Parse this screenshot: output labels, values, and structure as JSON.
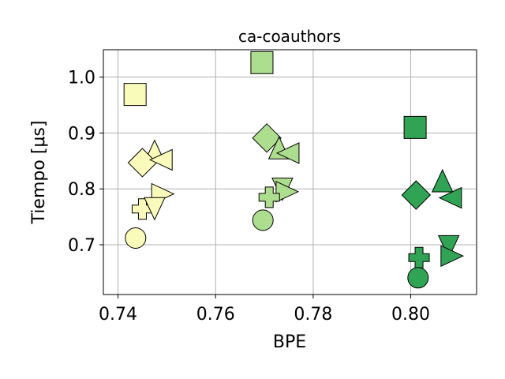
{
  "chart_data": {
    "type": "scatter",
    "title": "ca-coauthors",
    "xlabel": "BPE",
    "ylabel": "Tiempo [μs]",
    "xlim": [
      0.737,
      0.8135
    ],
    "ylim": [
      0.611,
      1.049
    ],
    "grid": true,
    "xticks": [
      0.74,
      0.76,
      0.78,
      0.8
    ],
    "xtick_labels": [
      "0.74",
      "0.76",
      "0.78",
      "0.80"
    ],
    "yticks": [
      0.7,
      0.8,
      0.9,
      1.0
    ],
    "ytick_labels": [
      "0.7",
      "0.8",
      "0.9",
      "1.0"
    ],
    "groups": [
      {
        "color": "#f8fbb9",
        "points": [
          {
            "marker": "square",
            "x": 0.7435,
            "y": 0.969
          },
          {
            "marker": "triangle-up",
            "x": 0.7475,
            "y": 0.866
          },
          {
            "marker": "diamond",
            "x": 0.745,
            "y": 0.847
          },
          {
            "marker": "triangle-left",
            "x": 0.749,
            "y": 0.852
          },
          {
            "marker": "triangle-right",
            "x": 0.749,
            "y": 0.791
          },
          {
            "marker": "plus",
            "x": 0.745,
            "y": 0.764
          },
          {
            "marker": "triangle-down",
            "x": 0.7475,
            "y": 0.766
          },
          {
            "marker": "circle",
            "x": 0.7436,
            "y": 0.712
          }
        ]
      },
      {
        "color": "#addd8e",
        "points": [
          {
            "marker": "square",
            "x": 0.7695,
            "y": 1.026
          },
          {
            "marker": "diamond",
            "x": 0.7705,
            "y": 0.891
          },
          {
            "marker": "triangle-up",
            "x": 0.773,
            "y": 0.872
          },
          {
            "marker": "triangle-left",
            "x": 0.775,
            "y": 0.864
          },
          {
            "marker": "triangle-down",
            "x": 0.7737,
            "y": 0.801
          },
          {
            "marker": "triangle-right",
            "x": 0.7745,
            "y": 0.795
          },
          {
            "marker": "plus",
            "x": 0.771,
            "y": 0.785
          },
          {
            "marker": "circle",
            "x": 0.7697,
            "y": 0.744
          }
        ]
      },
      {
        "color": "#31a354",
        "points": [
          {
            "marker": "square",
            "x": 0.8009,
            "y": 0.91
          },
          {
            "marker": "triangle-up",
            "x": 0.8065,
            "y": 0.813
          },
          {
            "marker": "diamond",
            "x": 0.8011,
            "y": 0.789
          },
          {
            "marker": "triangle-left",
            "x": 0.8083,
            "y": 0.784
          },
          {
            "marker": "triangle-down",
            "x": 0.8078,
            "y": 0.698
          },
          {
            "marker": "triangle-right",
            "x": 0.8083,
            "y": 0.68
          },
          {
            "marker": "plus",
            "x": 0.8017,
            "y": 0.677
          },
          {
            "marker": "circle",
            "x": 0.8015,
            "y": 0.641
          }
        ]
      }
    ]
  }
}
